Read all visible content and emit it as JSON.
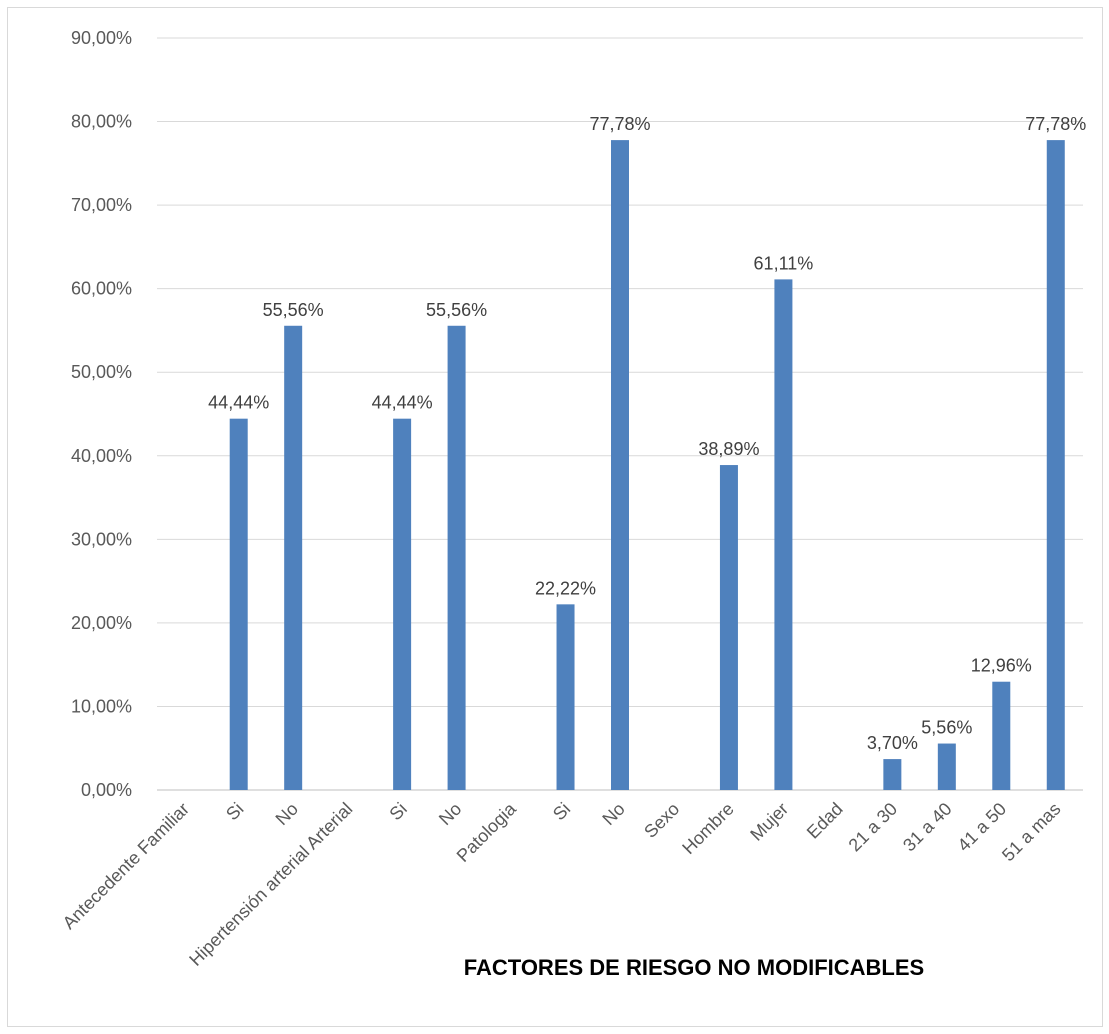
{
  "chart_data": {
    "type": "bar",
    "title": "",
    "xlabel": "FACTORES DE RIESGO NO MODIFICABLES",
    "ylabel": "",
    "ylim": [
      0,
      90
    ],
    "yticks": [
      "0,00%",
      "10,00%",
      "20,00%",
      "30,00%",
      "40,00%",
      "50,00%",
      "60,00%",
      "70,00%",
      "80,00%",
      "90,00%"
    ],
    "grid": true,
    "legend": "none",
    "bar_color": "#4f81bd",
    "categories": [
      "Antecedente Familiar",
      "Si",
      "No",
      "Hipertensión arterial Arterial",
      "Si",
      "No",
      "Patologia",
      "Si",
      "No",
      "Sexo",
      "Hombre",
      "Mujer",
      "Edad",
      "21 a 30",
      "31 a 40",
      "41 a 50",
      "51 a mas"
    ],
    "values": [
      null,
      44.44,
      55.56,
      null,
      44.44,
      55.56,
      null,
      22.22,
      77.78,
      null,
      38.89,
      61.11,
      null,
      3.7,
      5.56,
      12.96,
      77.78
    ],
    "data_labels": [
      "",
      "44,44%",
      "55,56%",
      "",
      "44,44%",
      "55,56%",
      "",
      "22,22%",
      "77,78%",
      "",
      "38,89%",
      "61,11%",
      "",
      "3,70%",
      "5,56%",
      "12,96%",
      "77,78%"
    ]
  }
}
